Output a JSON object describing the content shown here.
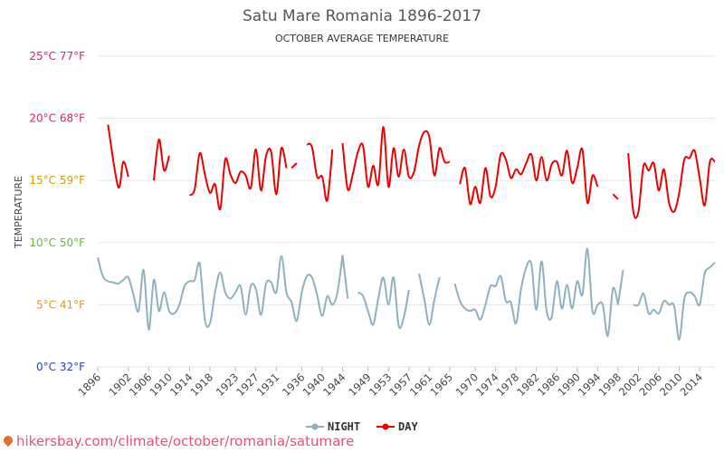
{
  "title": "Satu Mare Romania 1896-2017",
  "subtitle": "OCTOBER AVERAGE TEMPERATURE",
  "source_url": "hikersbay.com/climate/october/romania/satumare",
  "legend": {
    "night": "NIGHT",
    "day": "DAY"
  },
  "colors": {
    "night": "#8fb1bf",
    "day": "#ee0000",
    "grid": "#e6e6e6"
  },
  "chart_data": {
    "type": "line",
    "ylabel": "TEMPERATURE",
    "ylim": [
      0,
      25
    ],
    "yticks": [
      {
        "value": 0,
        "label": "0°C 32°F",
        "color": "#2a3fd1"
      },
      {
        "value": 5,
        "label": "5°C 41°F",
        "color": "#e09b00"
      },
      {
        "value": 10,
        "label": "10°C 50°F",
        "color": "#5fbf2f"
      },
      {
        "value": 15,
        "label": "15°C 59°F",
        "color": "#e09b00"
      },
      {
        "value": 20,
        "label": "20°C 68°F",
        "color": "#e8205a"
      },
      {
        "value": 25,
        "label": "25°C 77°F",
        "color": "#e8205a"
      }
    ],
    "xlim": [
      1896,
      2017
    ],
    "xticks": [
      "1896",
      "1902",
      "1906",
      "1910",
      "1914",
      "1918",
      "1923",
      "1927",
      "1931",
      "1936",
      "1940",
      "1944",
      "1949",
      "1953",
      "1957",
      "1961",
      "1965",
      "1970",
      "1974",
      "1978",
      "1982",
      "1986",
      "1990",
      "1994",
      "1998",
      "2002",
      "2006",
      "2010",
      "2014"
    ],
    "series": [
      {
        "name": "DAY",
        "segments": [
          {
            "x": [
              1898,
              1900,
              1901,
              1902
            ],
            "y": [
              19.5,
              14.5,
              16.5,
              15.3
            ]
          },
          {
            "x": [
              1907,
              1908,
              1909,
              1910
            ],
            "y": [
              15.0,
              18.3,
              15.8,
              17.0
            ]
          },
          {
            "x": [
              1914,
              1915,
              1916,
              1917,
              1918,
              1919,
              1920,
              1921,
              1922,
              1923,
              1924,
              1925,
              1926,
              1927,
              1928,
              1929,
              1930,
              1931,
              1932,
              1933
            ],
            "y": [
              13.8,
              14.3,
              17.2,
              15.5,
              14.0,
              14.7,
              12.7,
              16.7,
              15.5,
              14.8,
              15.7,
              15.4,
              14.4,
              17.5,
              14.2,
              17.0,
              17.3,
              13.9,
              17.6,
              16.0
            ]
          },
          {
            "x": [
              1934,
              1935
            ],
            "y": [
              16.0,
              16.4
            ]
          },
          {
            "x": [
              1937,
              1938,
              1939,
              1940,
              1941,
              1942
            ],
            "y": [
              17.9,
              17.7,
              15.3,
              15.3,
              13.4,
              17.5
            ]
          },
          {
            "x": [
              1944,
              1945,
              1946,
              1947,
              1948,
              1949,
              1950,
              1951,
              1952,
              1953,
              1954,
              1955,
              1956,
              1957,
              1958,
              1959,
              1960,
              1961,
              1962,
              1963,
              1964,
              1965
            ],
            "y": [
              18.0,
              14.3,
              15.5,
              17.3,
              17.8,
              14.5,
              16.2,
              14.7,
              19.3,
              14.5,
              17.6,
              15.3,
              17.5,
              15.3,
              15.7,
              17.8,
              18.9,
              18.5,
              15.4,
              17.6,
              16.5,
              16.5
            ]
          },
          {
            "x": [
              1967,
              1968,
              1969,
              1970,
              1971,
              1972,
              1973,
              1974,
              1975,
              1976,
              1977,
              1978,
              1979,
              1980,
              1981,
              1982,
              1983,
              1984,
              1985,
              1986,
              1987,
              1988,
              1989,
              1990,
              1991,
              1992,
              1993,
              1994
            ],
            "y": [
              14.7,
              16.0,
              13.1,
              14.5,
              13.2,
              16.0,
              13.7,
              14.5,
              17.1,
              16.7,
              15.2,
              15.9,
              15.5,
              16.4,
              17.1,
              15.0,
              16.9,
              15.0,
              16.3,
              16.5,
              15.4,
              17.4,
              14.8,
              16.0,
              17.5,
              13.2,
              15.4,
              14.5
            ]
          },
          {
            "x": [
              1997,
              1998
            ],
            "y": [
              13.9,
              13.5
            ]
          },
          {
            "x": [
              2000,
              2001,
              2002,
              2003,
              2004,
              2005,
              2006,
              2007,
              2008,
              2009,
              2010,
              2011,
              2012,
              2013,
              2014,
              2015,
              2016,
              2017
            ],
            "y": [
              17.2,
              12.5,
              12.5,
              16.2,
              15.8,
              16.4,
              14.2,
              15.9,
              13.2,
              12.5,
              14.0,
              16.7,
              16.8,
              17.4,
              15.2,
              13.0,
              16.5,
              16.5
            ]
          }
        ]
      },
      {
        "name": "NIGHT",
        "segments": [
          {
            "x": [
              1896,
              1897,
              1898,
              1899,
              1900,
              1901,
              1902,
              1903,
              1904,
              1905,
              1906,
              1907,
              1908,
              1909,
              1910,
              1911,
              1912,
              1913,
              1914,
              1915,
              1916,
              1917,
              1918,
              1919,
              1920,
              1921,
              1922,
              1923,
              1924,
              1925,
              1926,
              1927,
              1928,
              1929,
              1930,
              1931,
              1932,
              1933,
              1934,
              1935,
              1936,
              1937,
              1938,
              1939,
              1940,
              1941,
              1942,
              1943,
              1944
            ],
            "y": [
              8.8,
              7.3,
              6.9,
              6.8,
              6.7,
              7.0,
              7.2,
              5.8,
              4.5,
              7.8,
              3.0,
              7.0,
              4.5,
              6.0,
              4.5,
              4.3,
              5.0,
              6.5,
              6.9,
              7.0,
              8.3,
              3.8,
              3.5,
              6.0,
              7.6,
              6.0,
              5.5,
              6.0,
              6.5,
              4.2,
              6.5,
              6.3,
              4.2,
              6.7,
              6.8,
              6.0,
              8.9,
              6.0,
              5.2,
              3.7,
              6.0,
              7.3,
              7.2,
              5.8,
              4.1,
              5.7,
              5.0,
              6.0,
              9.0
            ]
          },
          {
            "x": [
              1944,
              1945
            ],
            "y": [
              9.0,
              5.5
            ]
          },
          {
            "x": [
              1947,
              1948,
              1949,
              1950,
              1951,
              1952,
              1953,
              1954,
              1955,
              1956,
              1957
            ],
            "y": [
              6.0,
              5.7,
              4.5,
              3.4,
              5.5,
              7.2,
              5.0,
              7.2,
              3.3,
              4.0,
              6.2
            ]
          },
          {
            "x": [
              1959,
              1960,
              1961,
              1962,
              1963
            ],
            "y": [
              7.5,
              5.5,
              3.4,
              5.4,
              7.2
            ]
          },
          {
            "x": [
              1966,
              1967,
              1968,
              1969,
              1970,
              1971,
              1972,
              1973,
              1974,
              1975,
              1976,
              1977,
              1978,
              1979,
              1980,
              1981,
              1982,
              1983,
              1984,
              1985,
              1986,
              1987,
              1988,
              1989,
              1990,
              1991,
              1992,
              1993,
              1994,
              1995,
              1996,
              1997,
              1998
            ],
            "y": [
              6.7,
              5.3,
              4.7,
              4.5,
              4.6,
              3.8,
              5.0,
              6.5,
              6.5,
              7.3,
              5.3,
              5.2,
              3.5,
              6.3,
              8.0,
              8.3,
              4.6,
              8.5,
              4.5,
              4.0,
              6.9,
              4.7,
              6.6,
              4.7,
              6.9,
              5.8,
              9.5,
              4.5,
              5.0,
              5.0,
              2.5,
              6.3,
              5.0
            ]
          },
          {
            "x": [
              1998,
              1999
            ],
            "y": [
              5.0,
              7.8
            ]
          },
          {
            "x": [
              2001,
              2002,
              2003,
              2004,
              2005,
              2006,
              2007,
              2008,
              2009,
              2010,
              2011,
              2012,
              2013,
              2014,
              2015,
              2016,
              2017
            ],
            "y": [
              5.0,
              5.0,
              5.9,
              4.3,
              4.6,
              4.3,
              5.3,
              5.0,
              4.9,
              2.2,
              5.5,
              6.0,
              5.7,
              5.0,
              7.5,
              8.0,
              8.4
            ]
          }
        ]
      }
    ]
  }
}
